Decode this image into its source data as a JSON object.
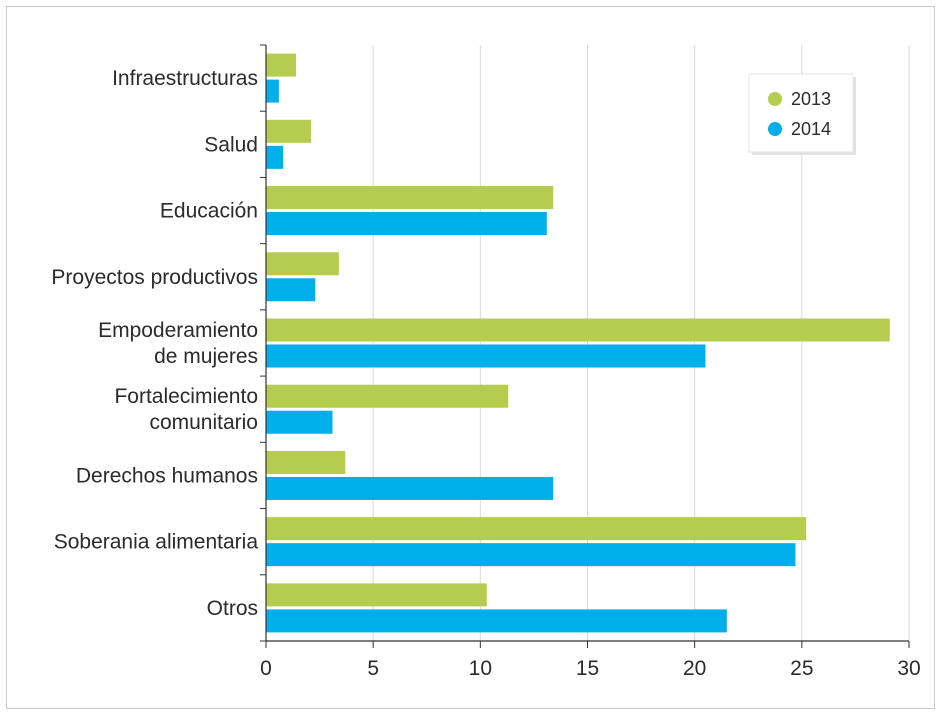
{
  "chart_data": {
    "type": "bar",
    "orientation": "horizontal",
    "categories": [
      [
        "Infraestructuras"
      ],
      [
        "Salud"
      ],
      [
        "Educación"
      ],
      [
        "Proyectos productivos"
      ],
      [
        "Empoderamiento",
        "de mujeres"
      ],
      [
        "Fortalecimiento",
        "comunitario"
      ],
      [
        "Derechos humanos"
      ],
      [
        "Soberania alimentaria"
      ],
      [
        "Otros"
      ]
    ],
    "series": [
      {
        "name": "2013",
        "color": "#b5cc4f",
        "values": [
          1.4,
          2.1,
          13.4,
          3.4,
          29.1,
          11.3,
          3.7,
          25.2,
          10.3
        ]
      },
      {
        "name": "2014",
        "color": "#00aee9",
        "values": [
          0.6,
          0.8,
          13.1,
          2.3,
          20.5,
          3.1,
          13.4,
          24.7,
          21.5
        ]
      }
    ],
    "xticks": [
      "0",
      "5",
      "10",
      "15",
      "20",
      "25",
      "30"
    ],
    "xlim": [
      0,
      30
    ],
    "grid": "vertical",
    "legend_position": "top-right",
    "title": "",
    "xlabel": "",
    "ylabel": ""
  }
}
